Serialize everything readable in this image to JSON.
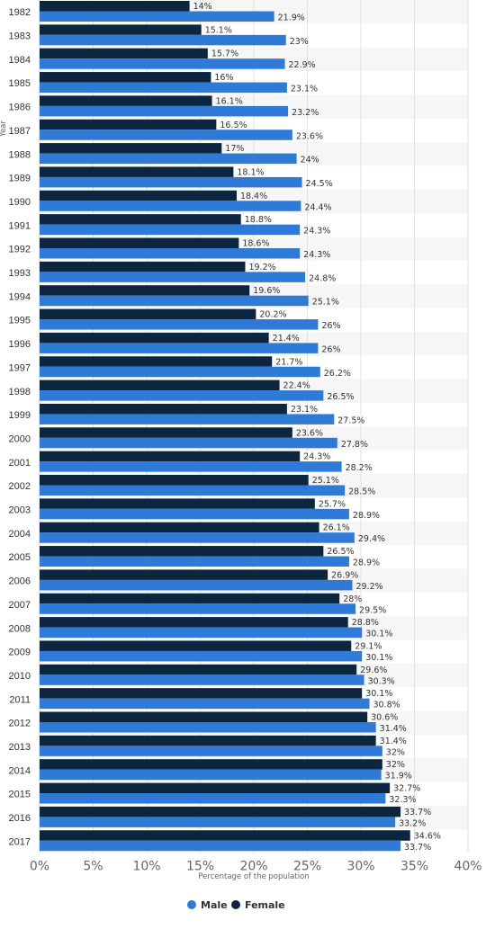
{
  "chart_data": {
    "type": "bar",
    "orientation": "horizontal",
    "xlabel": "Percentage of the population",
    "ylabel": "Year",
    "xlim": [
      0,
      40
    ],
    "xticks": [
      "0%",
      "5%",
      "10%",
      "15%",
      "20%",
      "25%",
      "30%",
      "35%",
      "40%"
    ],
    "grid": true,
    "legend_position": "bottom-center",
    "categories": [
      "1982",
      "1983",
      "1984",
      "1985",
      "1986",
      "1987",
      "1988",
      "1989",
      "1990",
      "1991",
      "1992",
      "1993",
      "1994",
      "1995",
      "1996",
      "1997",
      "1998",
      "1999",
      "2000",
      "2001",
      "2002",
      "2003",
      "2004",
      "2005",
      "2006",
      "2007",
      "2008",
      "2009",
      "2010",
      "2011",
      "2012",
      "2013",
      "2014",
      "2015",
      "2016",
      "2017"
    ],
    "series": [
      {
        "name": "Female",
        "color": "#0d2640",
        "values": [
          14,
          15.1,
          15.7,
          16,
          16.1,
          16.5,
          17,
          18.1,
          18.4,
          18.8,
          18.6,
          19.2,
          19.6,
          20.2,
          21.4,
          21.7,
          22.4,
          23.1,
          23.6,
          24.3,
          25.1,
          25.7,
          26.1,
          26.5,
          26.9,
          28,
          28.8,
          29.1,
          29.6,
          30.1,
          30.6,
          31.4,
          32,
          32.7,
          33.7,
          34.6
        ],
        "labels": [
          "14%",
          "15.1%",
          "15.7%",
          "16%",
          "16.1%",
          "16.5%",
          "17%",
          "18.1%",
          "18.4%",
          "18.8%",
          "18.6%",
          "19.2%",
          "19.6%",
          "20.2%",
          "21.4%",
          "21.7%",
          "22.4%",
          "23.1%",
          "23.6%",
          "24.3%",
          "25.1%",
          "25.7%",
          "26.1%",
          "26.5%",
          "26.9%",
          "28%",
          "28.8%",
          "29.1%",
          "29.6%",
          "30.1%",
          "30.6%",
          "31.4%",
          "32%",
          "32.7%",
          "33.7%",
          "34.6%"
        ]
      },
      {
        "name": "Male",
        "color": "#2f7ad6",
        "values": [
          21.9,
          23,
          22.9,
          23.1,
          23.2,
          23.6,
          24,
          24.5,
          24.4,
          24.3,
          24.3,
          24.8,
          25.1,
          26,
          26,
          26.2,
          26.5,
          27.5,
          27.8,
          28.2,
          28.5,
          28.9,
          29.4,
          28.9,
          29.2,
          29.5,
          30.1,
          30.1,
          30.3,
          30.8,
          31.4,
          32,
          31.9,
          32.3,
          33.2,
          33.7
        ],
        "labels": [
          "21.9%",
          "23%",
          "22.9%",
          "23.1%",
          "23.2%",
          "23.6%",
          "24%",
          "24.5%",
          "24.4%",
          "24.3%",
          "24.3%",
          "24.8%",
          "25.1%",
          "26%",
          "26%",
          "26.2%",
          "26.5%",
          "27.5%",
          "27.8%",
          "28.2%",
          "28.5%",
          "28.9%",
          "29.4%",
          "28.9%",
          "29.2%",
          "29.5%",
          "30.1%",
          "30.1%",
          "30.3%",
          "30.8%",
          "31.4%",
          "32%",
          "31.9%",
          "32.3%",
          "33.2%",
          "33.7%"
        ]
      }
    ],
    "legend": [
      {
        "name": "Male",
        "color": "#2f7ad6"
      },
      {
        "name": "Female",
        "color": "#0d2640"
      }
    ]
  }
}
